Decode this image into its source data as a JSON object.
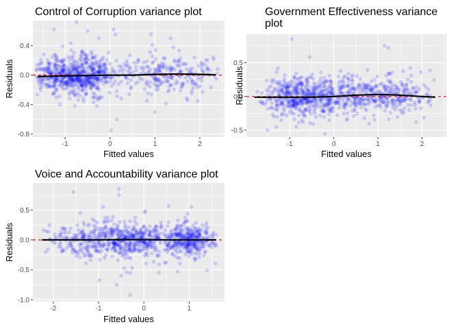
{
  "chart_data": [
    {
      "type": "scatter",
      "title": "Control of Corruption variance plot",
      "title_lines": [
        "Control of Corruption variance plot"
      ],
      "xlabel": "Fitted values",
      "ylabel": "Residuals",
      "xlim": [
        -1.72,
        2.55
      ],
      "ylim": [
        -0.84,
        0.74
      ],
      "xticks": [
        -1,
        0,
        1,
        2
      ],
      "xtick_labels": [
        "-1",
        "0",
        "1",
        "2"
      ],
      "yticks": [
        -0.8,
        -0.4,
        0.0,
        0.4
      ],
      "ytick_labels": [
        "-0.8",
        "-0.4",
        "0.0",
        "0.4"
      ],
      "point_color": "#0000ff",
      "point_alpha": 0.15,
      "n_points": 900,
      "x_range": [
        -1.65,
        2.4
      ],
      "x_mix": [
        [
          0.35,
          -1.1,
          0.35
        ],
        [
          0.35,
          -0.5,
          0.3
        ],
        [
          0.3,
          1.2,
          0.65
        ]
      ],
      "resid_sd": 0.13,
      "outliers": [
        [
          -0.75,
          0.72
        ],
        [
          -1.25,
          0.62
        ],
        [
          0.08,
          0.62
        ],
        [
          0.12,
          0.55
        ],
        [
          -0.5,
          0.6
        ],
        [
          0.02,
          -0.75
        ],
        [
          0.15,
          -0.6
        ],
        [
          1.0,
          -0.5
        ],
        [
          1.95,
          -0.35
        ],
        [
          1.35,
          0.5
        ],
        [
          -0.25,
          0.5
        ]
      ],
      "smooth": {
        "x": [
          -1.62,
          -1,
          -0.5,
          0,
          0.5,
          1,
          1.5,
          2,
          2.35
        ],
        "y": [
          -0.02,
          -0.01,
          -0.005,
          0.0,
          0.0,
          0.01,
          0.015,
          0.01,
          0.005
        ],
        "color": "#000000"
      },
      "reference_line": {
        "y": 0,
        "color": "#ff0000",
        "style": "dashed"
      },
      "panel_background": "#ebebeb",
      "grid": true,
      "seed": 11
    },
    {
      "type": "scatter",
      "title": "Government Effectiveness variance plot",
      "title_lines": [
        "Government Effectiveness variance",
        "plot"
      ],
      "xlabel": "Fitted values",
      "ylabel": "Residuals",
      "xlim": [
        -1.98,
        2.55
      ],
      "ylim": [
        -0.6,
        0.92
      ],
      "xticks": [
        -1,
        0,
        1,
        2
      ],
      "xtick_labels": [
        "-1",
        "0",
        "1",
        "2"
      ],
      "yticks": [
        -0.5,
        0.0,
        0.5
      ],
      "ytick_labels": [
        "-0.5",
        "0.0",
        "0.5"
      ],
      "point_color": "#0000ff",
      "point_alpha": 0.15,
      "n_points": 900,
      "x_range": [
        -1.8,
        2.3
      ],
      "x_mix": [
        [
          0.5,
          -0.7,
          0.45
        ],
        [
          0.25,
          0.2,
          0.5
        ],
        [
          0.25,
          1.3,
          0.5
        ]
      ],
      "resid_sd": 0.14,
      "outliers": [
        [
          -0.95,
          0.85
        ],
        [
          1.15,
          0.75
        ],
        [
          -0.2,
          -0.55
        ],
        [
          -1.5,
          -0.5
        ],
        [
          -1.3,
          -0.45
        ],
        [
          -0.85,
          -0.45
        ]
      ],
      "smooth": {
        "x": [
          -1.8,
          -1,
          -0.5,
          0,
          0.5,
          1,
          1.5,
          2,
          2.3
        ],
        "y": [
          -0.01,
          -0.01,
          -0.01,
          0.0,
          0.02,
          0.03,
          0.02,
          0.0,
          -0.01
        ],
        "color": "#000000"
      },
      "reference_line": {
        "y": 0,
        "color": "#ff0000",
        "style": "dashed"
      },
      "panel_background": "#ebebeb",
      "grid": true,
      "seed": 23
    },
    {
      "type": "scatter",
      "title": "Voice and Accountability variance plot",
      "title_lines": [
        "Voice and Accountability variance plot"
      ],
      "xlabel": "Fitted values",
      "ylabel": "Residuals",
      "xlim": [
        -2.45,
        1.78
      ],
      "ylim": [
        -1.03,
        0.95
      ],
      "xticks": [
        -2,
        -1,
        0,
        1
      ],
      "xtick_labels": [
        "-2",
        "-1",
        "0",
        "1"
      ],
      "yticks": [
        -1.0,
        -0.5,
        0.0,
        0.5
      ],
      "ytick_labels": [
        "-1.0",
        "-0.5",
        "0.0",
        "0.5"
      ],
      "point_color": "#0000ff",
      "point_alpha": 0.15,
      "n_points": 950,
      "x_range": [
        -2.25,
        1.62
      ],
      "x_mix": [
        [
          0.3,
          -1.2,
          0.5
        ],
        [
          0.35,
          -0.2,
          0.4
        ],
        [
          0.35,
          1.0,
          0.3
        ]
      ],
      "resid_sd": 0.14,
      "outliers": [
        [
          -0.55,
          0.85
        ],
        [
          -0.55,
          0.75
        ],
        [
          -1.55,
          0.8
        ],
        [
          -0.3,
          -0.92
        ],
        [
          -0.6,
          -0.75
        ],
        [
          -0.5,
          -0.6
        ],
        [
          -0.3,
          -0.55
        ],
        [
          -1.4,
          0.45
        ],
        [
          -0.9,
          0.55
        ]
      ],
      "smooth": {
        "x": [
          -2.25,
          -1.5,
          -1,
          -0.5,
          0,
          0.5,
          1,
          1.6
        ],
        "y": [
          0.0,
          0.0,
          0.0,
          0.005,
          0.005,
          0.0,
          0.0,
          0.0
        ],
        "color": "#000000"
      },
      "reference_line": {
        "y": 0,
        "color": "#ff0000",
        "style": "dashed"
      },
      "panel_background": "#ebebeb",
      "grid": true,
      "seed": 37
    }
  ]
}
